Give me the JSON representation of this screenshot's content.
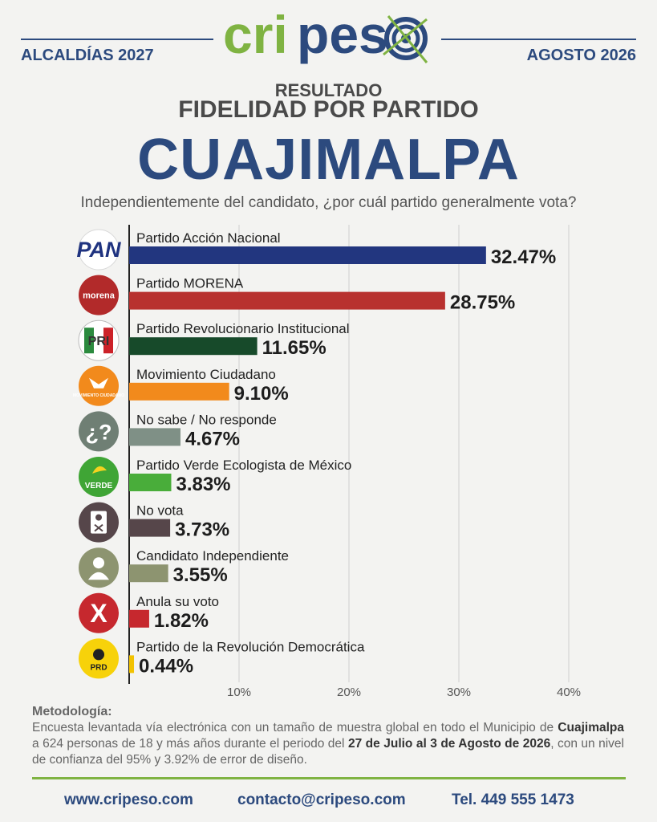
{
  "header": {
    "left": "ALCALDÍAS 2027",
    "right": "AGOSTO 2026",
    "logo_text": "cripes",
    "brand_green": "#7fb342",
    "brand_blue": "#2c4a7e"
  },
  "titles": {
    "line1": "RESULTADO",
    "line2": "FIDELIDAD POR PARTIDO",
    "line3": "CUAJIMALPA",
    "question": "Independientemente del candidato, ¿por cuál partido generalmente vota?"
  },
  "chart_data": {
    "type": "bar",
    "orientation": "horizontal",
    "categories": [
      "Partido Acción Nacional",
      "Partido MORENA",
      "Partido Revolucionario Institucional",
      "Movimiento Ciudadano",
      "No sabe / No responde",
      "Partido Verde Ecologista de México",
      "No vota",
      "Candidato Independiente",
      "Anula su voto",
      "Partido de la Revolución Democrática"
    ],
    "values": [
      32.47,
      28.75,
      11.65,
      9.1,
      4.67,
      3.83,
      3.73,
      3.55,
      1.82,
      0.44
    ],
    "value_labels": [
      "32.47%",
      "28.75%",
      "11.65%",
      "9.10%",
      "4.67%",
      "3.83%",
      "3.73%",
      "3.55%",
      "1.82%",
      "0.44%"
    ],
    "colors": [
      "#22367f",
      "#b8312f",
      "#174a2a",
      "#f28a1c",
      "#7f9086",
      "#49ad3a",
      "#56464a",
      "#8d9470",
      "#c6282e",
      "#f2c200"
    ],
    "icons": [
      "pan-logo",
      "morena-logo",
      "pri-logo",
      "mc-logo",
      "question-icon",
      "verde-logo",
      "ballot-icon",
      "person-icon",
      "x-mark-icon",
      "prd-logo"
    ],
    "icon_texts": [
      "PAN",
      "morena",
      "PRI",
      "MOVIMIENTO CIUDADANO",
      "¿?",
      "VERDE",
      "",
      "",
      "X",
      "PRD"
    ],
    "xlim": [
      0,
      40
    ],
    "xticks": [
      10,
      20,
      30,
      40
    ],
    "xtick_labels": [
      "10%",
      "20%",
      "30%",
      "40%"
    ],
    "grid": true
  },
  "methodology": {
    "title": "Metodología:",
    "t1": "Encuesta levantada vía electrónica con un tamaño de muestra global en todo el Municipio de ",
    "b1": "Cuajimalpa",
    "t2": " a 624 personas de 18 y más años durante el periodo del ",
    "b2": "27 de Julio al 3 de Agosto de 2026",
    "t3": ", con un nivel de confianza del 95% y 3.92% de error de diseño."
  },
  "footer": {
    "web": "www.cripeso.com",
    "email": "contacto@cripeso.com",
    "phone": "Tel. 449 555 1473"
  }
}
